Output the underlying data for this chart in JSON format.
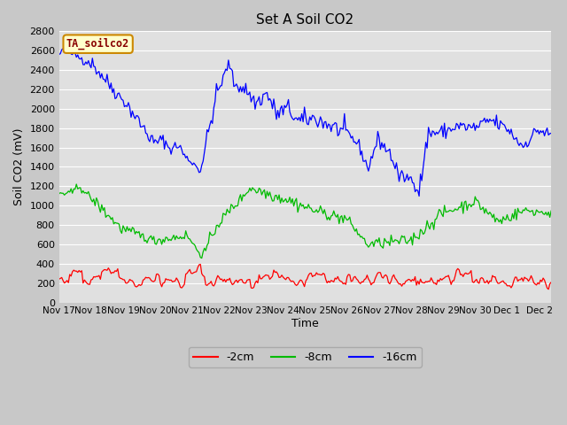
{
  "title": "Set A Soil CO2",
  "xlabel": "Time",
  "ylabel": "Soil CO2 (mV)",
  "ylim": [
    0,
    2800
  ],
  "yticks": [
    0,
    200,
    400,
    600,
    800,
    1000,
    1200,
    1400,
    1600,
    1800,
    2000,
    2200,
    2400,
    2600,
    2800
  ],
  "legend_label": "TA_soilco2",
  "line_labels": [
    "-2cm",
    "-8cm",
    "-16cm"
  ],
  "line_colors": [
    "#ff0000",
    "#00bb00",
    "#0000ff"
  ],
  "fig_bg_color": "#c8c8c8",
  "plot_bg_color": "#e0e0e0",
  "grid_color": "#ffffff",
  "n_points": 370,
  "xtick_labels": [
    "Nov 17",
    "Nov 18",
    "Nov 19",
    "Nov 20",
    "Nov 21",
    "Nov 22",
    "Nov 23",
    "Nov 24",
    "Nov 25",
    "Nov 26",
    "Nov 27",
    "Nov 28",
    "Nov 29",
    "Nov 30",
    "Dec 1",
    "Dec 2"
  ],
  "xtick_positions": [
    0,
    24,
    48,
    72,
    96,
    120,
    144,
    168,
    192,
    216,
    240,
    264,
    288,
    312,
    336,
    360
  ]
}
